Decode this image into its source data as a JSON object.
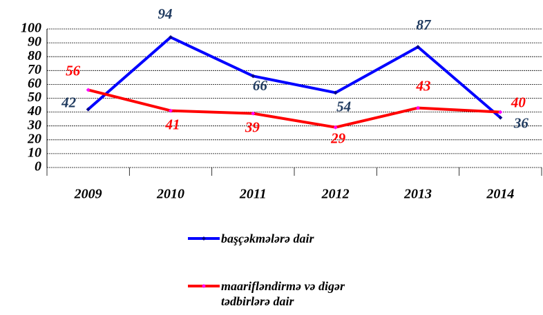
{
  "chart_data": {
    "type": "line",
    "categories": [
      "2009",
      "2010",
      "2011",
      "2012",
      "2013",
      "2014"
    ],
    "series": [
      {
        "name": "başçəkmələrə dair",
        "color": "#0000ff",
        "marker_color": "#00008b",
        "label_color": "#1f3a5f",
        "values": [
          42,
          94,
          66,
          54,
          87,
          36
        ]
      },
      {
        "name": "maarifləndirmə və digər tədbirlərə dair",
        "color": "#ff0000",
        "marker_color": "#ff00ff",
        "label_color": "#ff0000",
        "values": [
          56,
          41,
          39,
          29,
          43,
          40
        ]
      }
    ],
    "ylim": [
      0,
      100
    ],
    "yticks": [
      0,
      10,
      20,
      30,
      40,
      50,
      60,
      70,
      80,
      90,
      100
    ],
    "grid": true
  }
}
